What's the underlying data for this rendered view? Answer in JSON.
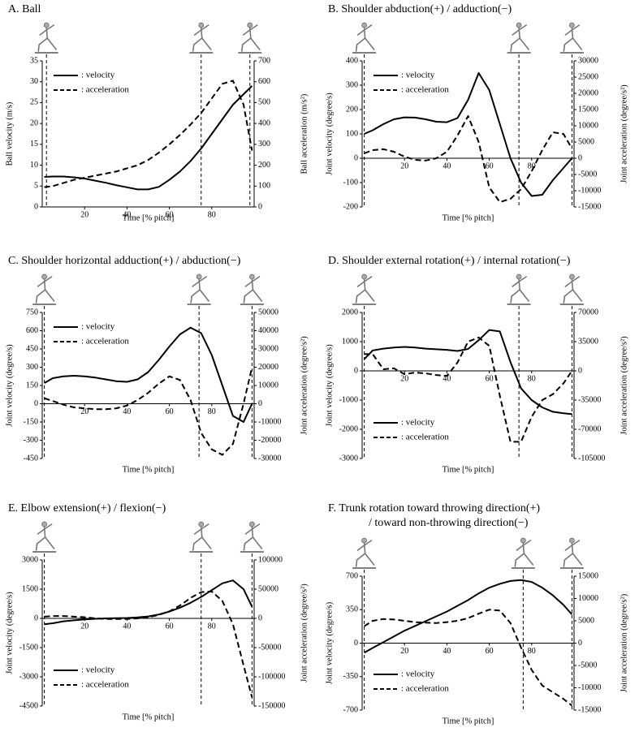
{
  "chart_data": [
    {
      "type": "line",
      "title": "A. Ball",
      "xlabel": "Time [% pitch]",
      "ylabel": "Ball velocity (m/s)",
      "y2label": "Ball acceleration (m/s²)",
      "x": [
        1,
        5,
        10,
        15,
        20,
        25,
        30,
        35,
        40,
        45,
        50,
        55,
        60,
        65,
        70,
        75,
        80,
        85,
        90,
        95,
        99
      ],
      "xlim": [
        0,
        100
      ],
      "xticks": [
        20,
        40,
        60,
        80
      ],
      "ylim": [
        0,
        35
      ],
      "yticks": [
        0,
        5,
        10,
        15,
        20,
        25,
        30,
        35
      ],
      "y2lim": [
        0,
        700
      ],
      "y2ticks": [
        0,
        100,
        200,
        300,
        400,
        500,
        600,
        700
      ],
      "event_lines": [
        2,
        75,
        98
      ],
      "legend": "upper left",
      "series": [
        {
          "name": ": velocity",
          "color": "#000000",
          "line_style": "solid",
          "values": [
            7.2,
            7.3,
            7.3,
            7.1,
            6.8,
            6.3,
            5.8,
            5.2,
            4.7,
            4.2,
            4.2,
            4.8,
            6.5,
            8.5,
            11,
            14,
            17.5,
            21,
            24.5,
            27,
            29
          ]
        },
        {
          "name": ": acceleration",
          "color": "#000000",
          "line_style": "dashed",
          "axis": "y2",
          "values": [
            95,
            100,
            115,
            130,
            140,
            150,
            160,
            170,
            185,
            200,
            225,
            260,
            300,
            345,
            395,
            450,
            520,
            590,
            605,
            490,
            270
          ]
        }
      ]
    },
    {
      "type": "line",
      "title": "B. Shoulder abduction(+) / adduction(−)",
      "xlabel": "Time [% pitch]",
      "ylabel": "Joint velocity (degree/s)",
      "y2label": "Joint acceleration (degree/s²)",
      "x": [
        1,
        5,
        10,
        15,
        20,
        25,
        30,
        35,
        40,
        45,
        50,
        55,
        60,
        65,
        70,
        75,
        80,
        85,
        90,
        95,
        99
      ],
      "xlim": [
        0,
        100
      ],
      "xticks": [
        20,
        40,
        60,
        80
      ],
      "ylim": [
        -200,
        400
      ],
      "yticks": [
        -200,
        -100,
        0,
        100,
        200,
        300,
        400
      ],
      "y2lim": [
        -15000,
        30000
      ],
      "y2ticks": [
        -15000,
        -10000,
        -5000,
        0,
        5000,
        10000,
        15000,
        20000,
        25000,
        30000
      ],
      "event_lines": [
        1,
        74,
        99
      ],
      "legend": "upper left",
      "series": [
        {
          "name": ": velocity",
          "color": "#000000",
          "line_style": "solid",
          "values": [
            100,
            115,
            140,
            160,
            168,
            167,
            160,
            150,
            148,
            165,
            240,
            350,
            280,
            140,
            0,
            -100,
            -155,
            -150,
            -90,
            -40,
            0
          ]
        },
        {
          "name": ": acceleration",
          "color": "#000000",
          "line_style": "dashed",
          "axis": "y2",
          "values": [
            1500,
            2500,
            2800,
            2000,
            500,
            -500,
            -700,
            0,
            2000,
            7000,
            13000,
            5000,
            -9000,
            -13500,
            -12500,
            -9500,
            -4000,
            2500,
            8000,
            7500,
            3000
          ]
        }
      ]
    },
    {
      "type": "line",
      "title": "C. Shoulder horizontal adduction(+) / abduction(−)",
      "xlabel": "Time [% pitch]",
      "ylabel": "Joint velocity (degree/s)",
      "y2label": "Joint acceleration (degree/s²)",
      "x": [
        1,
        5,
        10,
        15,
        20,
        25,
        30,
        35,
        40,
        45,
        50,
        55,
        60,
        65,
        70,
        75,
        80,
        85,
        90,
        95,
        99
      ],
      "xlim": [
        0,
        100
      ],
      "xticks": [
        20,
        40,
        60,
        80
      ],
      "ylim": [
        -450,
        750
      ],
      "yticks": [
        -450,
        -300,
        -150,
        0,
        150,
        300,
        450,
        600,
        750
      ],
      "y2lim": [
        -30000,
        50000
      ],
      "y2ticks": [
        -30000,
        -20000,
        -10000,
        0,
        10000,
        20000,
        30000,
        40000,
        50000
      ],
      "event_lines": [
        1,
        74,
        99
      ],
      "legend": "upper left",
      "series": [
        {
          "name": ": velocity",
          "color": "#000000",
          "line_style": "solid",
          "values": [
            170,
            210,
            225,
            230,
            225,
            215,
            200,
            185,
            180,
            200,
            260,
            360,
            470,
            570,
            625,
            580,
            400,
            150,
            -100,
            -150,
            0
          ]
        },
        {
          "name": ": acceleration",
          "color": "#000000",
          "line_style": "dashed",
          "axis": "y2",
          "values": [
            3000,
            1500,
            -500,
            -2000,
            -2500,
            -3000,
            -3000,
            -2500,
            -1000,
            2000,
            6000,
            11000,
            15000,
            13000,
            2000,
            -16000,
            -25000,
            -28000,
            -22000,
            0,
            20000
          ]
        }
      ]
    },
    {
      "type": "line",
      "title": "D. Shoulder external rotation(+) / internal rotation(−)",
      "xlabel": "Time [% pitch]",
      "ylabel": "Joint velocity (degree/s)",
      "y2label": "Joint acceleration (degree/s²)",
      "x": [
        1,
        5,
        10,
        15,
        20,
        25,
        30,
        35,
        40,
        45,
        50,
        55,
        60,
        65,
        70,
        75,
        80,
        85,
        90,
        95,
        99
      ],
      "xlim": [
        0,
        100
      ],
      "xticks": [
        20,
        40,
        60,
        80
      ],
      "ylim": [
        -3000,
        2000
      ],
      "yticks": [
        -3000,
        -2000,
        -1000,
        0,
        1000,
        2000
      ],
      "y2lim": [
        -105000,
        70000
      ],
      "y2ticks": [
        -105000,
        -70000,
        -35000,
        0,
        35000,
        70000
      ],
      "event_lines": [
        1,
        74,
        99
      ],
      "legend": "lower left",
      "series": [
        {
          "name": ": velocity",
          "color": "#000000",
          "line_style": "solid",
          "values": [
            400,
            700,
            760,
            800,
            820,
            800,
            760,
            740,
            720,
            680,
            750,
            1050,
            1400,
            1350,
            300,
            -600,
            -1000,
            -1250,
            -1400,
            -1450,
            -1480
          ]
        },
        {
          "name": ": acceleration",
          "color": "#000000",
          "line_style": "dashed",
          "axis": "y2",
          "values": [
            20000,
            20000,
            2000,
            3000,
            -4000,
            -2000,
            -3000,
            -5000,
            -6000,
            10000,
            35000,
            40000,
            30000,
            -30000,
            -85000,
            -85000,
            -55000,
            -35000,
            -28000,
            -15000,
            0
          ]
        }
      ]
    },
    {
      "type": "line",
      "title": "E. Elbow extension(+) / flexion(−)",
      "xlabel": "Time [% pitch]",
      "ylabel": "Joint velocity (degree/s)",
      "y2label": "Joint acceleration (degree/s²)",
      "x": [
        1,
        5,
        10,
        15,
        20,
        25,
        30,
        35,
        40,
        45,
        50,
        55,
        60,
        65,
        70,
        75,
        80,
        85,
        90,
        95,
        99
      ],
      "xlim": [
        0,
        100
      ],
      "xticks": [
        20,
        40,
        60,
        80
      ],
      "ylim": [
        -4500,
        3000
      ],
      "yticks": [
        -4500,
        -3000,
        -1500,
        0,
        1500,
        3000
      ],
      "y2lim": [
        -150000,
        100000
      ],
      "y2ticks": [
        -150000,
        -100000,
        -50000,
        0,
        50000,
        100000
      ],
      "event_lines": [
        1,
        75,
        99
      ],
      "legend": "lower left",
      "series": [
        {
          "name": ": velocity",
          "color": "#000000",
          "line_style": "solid",
          "values": [
            -300,
            -250,
            -150,
            -100,
            -50,
            -20,
            0,
            10,
            20,
            50,
            100,
            200,
            350,
            550,
            800,
            1100,
            1450,
            1800,
            1950,
            1500,
            600
          ]
        },
        {
          "name": ": acceleration",
          "color": "#000000",
          "line_style": "dashed",
          "axis": "y2",
          "values": [
            3000,
            4000,
            4000,
            3000,
            2000,
            0,
            -1000,
            -1000,
            -1000,
            0,
            2000,
            6000,
            12000,
            22000,
            35000,
            45000,
            46000,
            30000,
            -10000,
            -80000,
            -135000
          ]
        }
      ]
    },
    {
      "type": "line",
      "title": "F. Trunk rotation toward throwing direction(+)",
      "subtitle": "/ toward non-throwing direction(−)",
      "xlabel": "Time [% pitch]",
      "ylabel": "Joint velocity (degree/s)",
      "y2label": "Joint acceleration (degree/s²)",
      "x": [
        1,
        5,
        10,
        15,
        20,
        25,
        30,
        35,
        40,
        45,
        50,
        55,
        60,
        65,
        70,
        75,
        80,
        85,
        90,
        95,
        99
      ],
      "xlim": [
        0,
        100
      ],
      "xticks": [
        20,
        40,
        60,
        80
      ],
      "ylim": [
        -700,
        700
      ],
      "yticks": [
        -700,
        -350,
        0,
        350,
        700
      ],
      "y2lim": [
        -15000,
        15000
      ],
      "y2ticks": [
        -15000,
        -10000,
        -5000,
        0,
        5000,
        10000,
        15000
      ],
      "event_lines": [
        1,
        76,
        99
      ],
      "legend": "lower left",
      "series": [
        {
          "name": ": velocity",
          "color": "#000000",
          "line_style": "solid",
          "values": [
            -100,
            -50,
            10,
            70,
            130,
            180,
            230,
            280,
            330,
            390,
            450,
            520,
            580,
            620,
            650,
            660,
            640,
            580,
            500,
            400,
            300
          ]
        },
        {
          "name": ": acceleration",
          "color": "#000000",
          "line_style": "dashed",
          "axis": "y2",
          "values": [
            3800,
            5000,
            5400,
            5300,
            5000,
            4700,
            4600,
            4500,
            4700,
            5000,
            5600,
            6600,
            7500,
            7300,
            4500,
            -1000,
            -6000,
            -9500,
            -11000,
            -12500,
            -14000
          ]
        }
      ]
    }
  ]
}
